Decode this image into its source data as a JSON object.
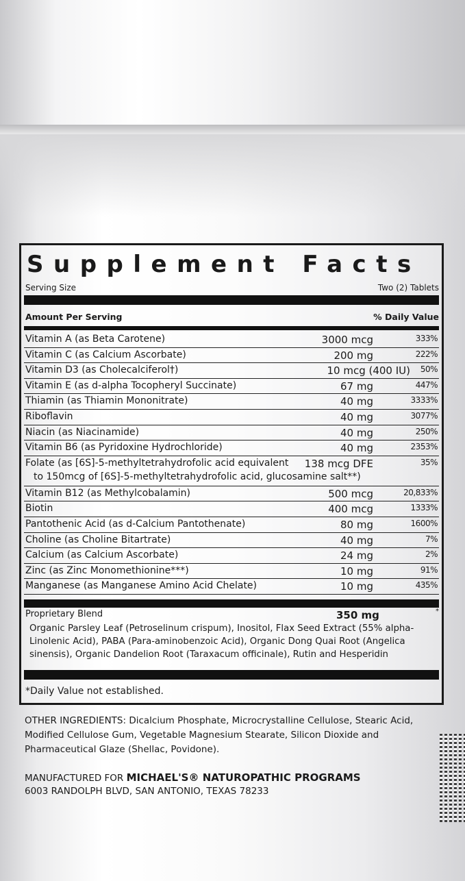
{
  "facts": {
    "title": "Supplement Facts",
    "serving_size_label": "Serving Size",
    "serving_size_value": "Two (2) Tablets",
    "amount_per_serving": "Amount Per Serving",
    "daily_value_header": "% Daily Value",
    "rows": [
      {
        "name": "Vitamin A (as Beta Carotene)",
        "amount": "3000 mcg",
        "dv": "333%"
      },
      {
        "name": "Vitamin C (as Calcium Ascorbate)",
        "amount": "200 mg",
        "dv": "222%"
      },
      {
        "name": "Vitamin D3 (as Cholecalciferol†)",
        "amount": "10 mcg (400 IU)",
        "dv": "50%"
      },
      {
        "name": "Vitamin E (as d-alpha Tocopheryl Succinate)",
        "amount": "67 mg",
        "dv": "447%"
      },
      {
        "name": "Thiamin (as Thiamin Mononitrate)",
        "amount": "40 mg",
        "dv": "3333%"
      },
      {
        "name": "Riboflavin",
        "amount": "40 mg",
        "dv": "3077%"
      },
      {
        "name": "Niacin (as Niacinamide)",
        "amount": "40 mg",
        "dv": "250%"
      },
      {
        "name": "Vitamin B6 (as Pyridoxine Hydrochloride)",
        "amount": "40 mg",
        "dv": "2353%"
      },
      {
        "name": "Folate (as [6S]-5-methyltetrahydrofolic acid equivalent",
        "name2": "to 150mcg of [6S]-5-methyltetrahydrofolic acid, glucosamine salt**)",
        "amount": "138 mcg DFE",
        "dv": "35%"
      },
      {
        "name": "Vitamin B12 (as Methylcobalamin)",
        "amount": "500 mcg",
        "dv": "20,833%"
      },
      {
        "name": "Biotin",
        "amount": "400 mcg",
        "dv": "1333%"
      },
      {
        "name": "Pantothenic Acid (as d-Calcium Pantothenate)",
        "amount": "80 mg",
        "dv": "1600%"
      },
      {
        "name": "Choline (as Choline Bitartrate)",
        "amount": "40 mg",
        "dv": "7%"
      },
      {
        "name": "Calcium (as Calcium Ascorbate)",
        "amount": "24 mg",
        "dv": "2%"
      },
      {
        "name": "Zinc (as Zinc Monomethionine***)",
        "amount": "10 mg",
        "dv": "91%"
      },
      {
        "name": "Manganese (as Manganese Amino Acid Chelate)",
        "amount": "10 mg",
        "dv": "435%"
      }
    ],
    "blend_title": "Proprietary Blend",
    "blend_amount": "350 mg",
    "blend_symbol": "*",
    "blend_ingredients": "Organic Parsley Leaf (Petroselinum crispum), Inositol, Flax Seed Extract (55% alpha-Linolenic Acid), PABA (Para-aminobenzoic Acid), Organic Dong Quai Root (Angelica sinensis), Organic Dandelion Root (Taraxacum officinale), Rutin and Hesperidin",
    "footnote": "*Daily Value not established."
  },
  "other_ingredients": "OTHER INGREDIENTS: Dicalcium Phosphate, Microcrystalline Cellulose, Stearic Acid, Modified Cellulose Gum, Vegetable Magnesium Stearate, Silicon Dioxide and Pharmaceutical Glaze (Shellac, Povidone).",
  "manufacturer": {
    "prefix": "MANUFACTURED FOR",
    "name": "MICHAEL'S® NATUROPATHIC PROGRAMS",
    "address": "6003 RANDOLPH BLVD, SAN ANTONIO, TEXAS 78233"
  }
}
